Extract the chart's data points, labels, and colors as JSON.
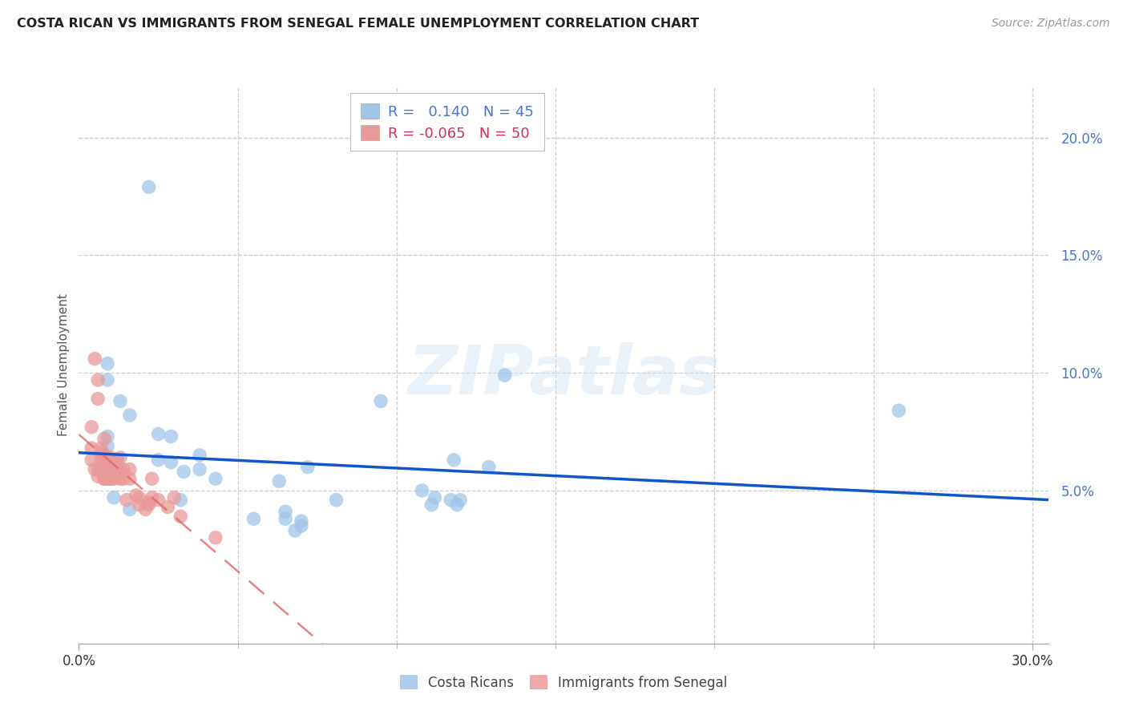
{
  "title": "COSTA RICAN VS IMMIGRANTS FROM SENEGAL FEMALE UNEMPLOYMENT CORRELATION CHART",
  "source": "Source: ZipAtlas.com",
  "ylabel": "Female Unemployment",
  "ylabel_ticks_right": [
    "5.0%",
    "10.0%",
    "15.0%",
    "20.0%"
  ],
  "ylabel_vals_right": [
    0.05,
    0.1,
    0.15,
    0.2
  ],
  "xlim": [
    0.0,
    0.305
  ],
  "ylim": [
    -0.015,
    0.222
  ],
  "R_blue": 0.14,
  "N_blue": 45,
  "R_pink": -0.065,
  "N_pink": 50,
  "blue_color": "#9fc5e8",
  "pink_color": "#ea9999",
  "blue_line_color": "#1155cc",
  "pink_line_color": "#e06666",
  "watermark_text": "ZIPatlas",
  "legend_label_blue": "Costa Ricans",
  "legend_label_pink": "Immigrants from Senegal",
  "blue_x": [
    0.022,
    0.009,
    0.009,
    0.008,
    0.013,
    0.016,
    0.009,
    0.009,
    0.012,
    0.008,
    0.008,
    0.013,
    0.01,
    0.01,
    0.011,
    0.016,
    0.025,
    0.025,
    0.029,
    0.029,
    0.032,
    0.033,
    0.038,
    0.038,
    0.043,
    0.055,
    0.063,
    0.065,
    0.065,
    0.068,
    0.07,
    0.07,
    0.072,
    0.081,
    0.095,
    0.108,
    0.111,
    0.112,
    0.117,
    0.118,
    0.119,
    0.12,
    0.129,
    0.134,
    0.258
  ],
  "blue_y": [
    0.179,
    0.097,
    0.104,
    0.065,
    0.088,
    0.082,
    0.069,
    0.073,
    0.063,
    0.062,
    0.057,
    0.058,
    0.055,
    0.061,
    0.047,
    0.042,
    0.074,
    0.063,
    0.073,
    0.062,
    0.046,
    0.058,
    0.065,
    0.059,
    0.055,
    0.038,
    0.054,
    0.038,
    0.041,
    0.033,
    0.035,
    0.037,
    0.06,
    0.046,
    0.088,
    0.05,
    0.044,
    0.047,
    0.046,
    0.063,
    0.044,
    0.046,
    0.06,
    0.099,
    0.084
  ],
  "pink_x": [
    0.004,
    0.004,
    0.004,
    0.005,
    0.005,
    0.006,
    0.006,
    0.006,
    0.006,
    0.007,
    0.007,
    0.007,
    0.007,
    0.008,
    0.008,
    0.008,
    0.008,
    0.008,
    0.009,
    0.009,
    0.009,
    0.009,
    0.01,
    0.01,
    0.01,
    0.011,
    0.011,
    0.012,
    0.012,
    0.013,
    0.013,
    0.013,
    0.014,
    0.014,
    0.015,
    0.016,
    0.016,
    0.018,
    0.019,
    0.019,
    0.021,
    0.022,
    0.022,
    0.023,
    0.023,
    0.025,
    0.028,
    0.03,
    0.032,
    0.043
  ],
  "pink_y": [
    0.063,
    0.068,
    0.077,
    0.059,
    0.106,
    0.059,
    0.056,
    0.089,
    0.097,
    0.059,
    0.063,
    0.066,
    0.068,
    0.055,
    0.059,
    0.065,
    0.072,
    0.055,
    0.058,
    0.062,
    0.064,
    0.055,
    0.055,
    0.059,
    0.064,
    0.055,
    0.059,
    0.059,
    0.063,
    0.059,
    0.064,
    0.055,
    0.055,
    0.059,
    0.046,
    0.059,
    0.055,
    0.048,
    0.047,
    0.044,
    0.042,
    0.044,
    0.045,
    0.055,
    0.047,
    0.046,
    0.043,
    0.047,
    0.039,
    0.03
  ]
}
